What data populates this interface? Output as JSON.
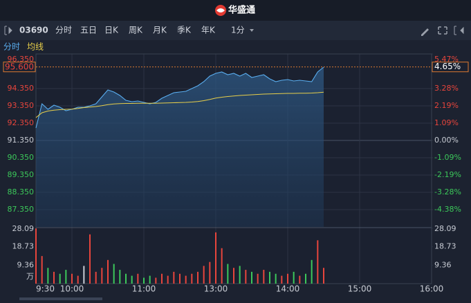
{
  "header": {
    "title": "华盛通"
  },
  "toolbar": {
    "code": "03690",
    "tabs": [
      "分时",
      "五日",
      "日K",
      "周K",
      "月K",
      "季K",
      "年K"
    ],
    "active_tab": 0,
    "interval": "1分"
  },
  "chart_data": {
    "type": "line",
    "x": [
      0,
      5,
      10,
      15,
      20,
      25,
      30,
      35,
      40,
      45,
      50,
      55,
      60,
      65,
      70,
      75,
      80,
      85,
      90,
      95,
      100,
      105,
      110,
      115,
      120,
      125,
      130,
      135,
      140,
      145,
      150,
      155,
      160,
      165,
      170,
      175,
      180,
      185,
      190,
      195,
      200,
      205,
      210,
      215,
      220,
      225,
      230,
      235,
      240
    ],
    "xlim": [
      0,
      330
    ],
    "xticks": [
      {
        "value": 0,
        "label": "9:30"
      },
      {
        "value": 30,
        "label": "10:00"
      },
      {
        "value": 90,
        "label": "11:00"
      },
      {
        "value": 150,
        "label": "13:00"
      },
      {
        "value": 210,
        "label": "14:00"
      },
      {
        "value": 270,
        "label": "15:00"
      },
      {
        "value": 330,
        "label": "16:00"
      }
    ],
    "ylim": [
      86.35,
      96.35
    ],
    "yticks": [
      {
        "value": 96.35,
        "label": "96.350"
      },
      {
        "value": 94.35,
        "label": "94.350"
      },
      {
        "value": 93.35,
        "label": "93.350"
      },
      {
        "value": 92.35,
        "label": "92.350"
      },
      {
        "value": 91.35,
        "label": "91.350"
      },
      {
        "value": 90.35,
        "label": "90.350"
      },
      {
        "value": 89.35,
        "label": "89.350"
      },
      {
        "value": 88.35,
        "label": "88.350"
      },
      {
        "value": 87.35,
        "label": "87.350"
      }
    ],
    "y2lim": [
      -5.47,
      5.47
    ],
    "y2ticks": [
      {
        "value": 5.47,
        "label": "5.47%"
      },
      {
        "value": 3.28,
        "label": "3.28%"
      },
      {
        "value": 2.19,
        "label": "2.19%"
      },
      {
        "value": 1.09,
        "label": "1.09%"
      },
      {
        "value": 0,
        "label": "0.00%"
      },
      {
        "value": -1.09,
        "label": "-1.09%"
      },
      {
        "value": -2.19,
        "label": "-2.19%"
      },
      {
        "value": -3.28,
        "label": "-3.28%"
      },
      {
        "value": -4.38,
        "label": "-4.38%"
      }
    ],
    "base_price": 91.35,
    "series": [
      {
        "name": "分时",
        "color": "#5aaef0",
        "values": [
          92.07,
          93.47,
          93.15,
          93.39,
          93.27,
          93.07,
          93.15,
          93.27,
          93.27,
          93.35,
          93.47,
          93.87,
          94.27,
          94.15,
          93.95,
          93.67,
          93.59,
          93.63,
          93.55,
          93.47,
          93.55,
          93.79,
          93.95,
          94.11,
          94.15,
          94.19,
          94.35,
          94.51,
          94.75,
          95.07,
          95.23,
          95.31,
          95.15,
          95.23,
          95.07,
          95.23,
          94.99,
          95.07,
          95.15,
          94.91,
          94.75,
          94.83,
          94.87,
          94.79,
          94.83,
          94.79,
          94.75,
          95.31,
          95.59
        ]
      },
      {
        "name": "均线",
        "color": "#e8cf4a",
        "values": [
          92.67,
          92.95,
          93.05,
          93.1,
          93.13,
          93.15,
          93.16,
          93.2,
          93.25,
          93.28,
          93.31,
          93.36,
          93.42,
          93.46,
          93.48,
          93.49,
          93.49,
          93.5,
          93.5,
          93.5,
          93.5,
          93.51,
          93.52,
          93.53,
          93.54,
          93.55,
          93.57,
          93.6,
          93.65,
          93.72,
          93.8,
          93.85,
          93.89,
          93.92,
          93.95,
          93.97,
          93.99,
          94.01,
          94.03,
          94.04,
          94.05,
          94.06,
          94.07,
          94.07,
          94.08,
          94.08,
          94.09,
          94.11,
          94.14
        ]
      }
    ],
    "last_price": {
      "value": 95.6,
      "label": "95.600"
    },
    "last_change": {
      "value": 4.65,
      "label": "4.65%"
    },
    "volume": {
      "values": [
        28,
        14,
        8,
        6,
        5,
        7,
        5,
        4,
        9,
        25,
        6,
        8,
        12,
        10,
        7,
        5,
        4,
        5,
        3,
        4,
        3,
        5,
        4,
        6,
        5,
        4,
        5,
        6,
        9,
        11,
        26,
        18,
        10,
        8,
        9,
        7,
        6,
        5,
        7,
        6,
        5,
        4,
        5,
        6,
        4,
        5,
        12,
        22,
        8
      ],
      "ylim": [
        0,
        28.09
      ],
      "yticks": [
        28.09,
        18.73,
        9.36
      ],
      "unit": "万"
    },
    "colors": {
      "up": "#e8453c",
      "down": "#3cc85a",
      "neutral": "#c8ccd4"
    },
    "grid": true
  }
}
